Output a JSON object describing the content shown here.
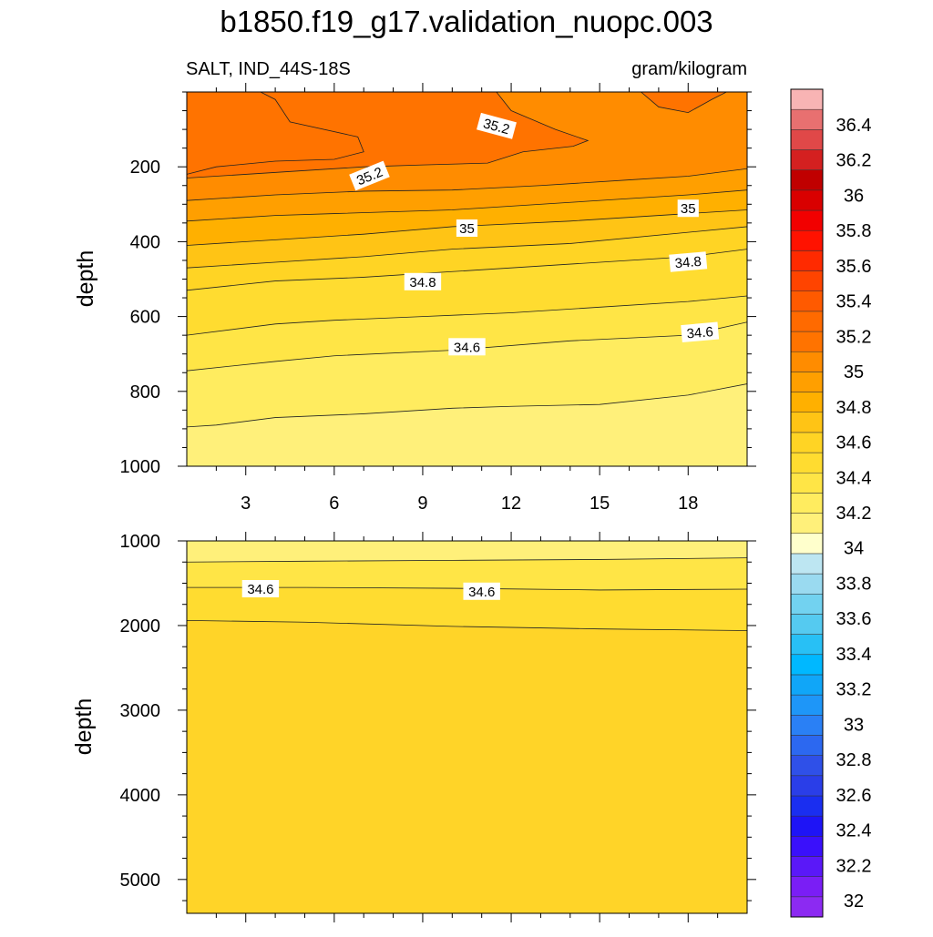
{
  "title": "b1850.f19_g17.validation_nuopc.003",
  "chart_data": {
    "type": "heatmap",
    "variable_label": "SALT, IND_44S-18S",
    "units_label": "gram/kilogram",
    "panels": [
      {
        "name": "upper",
        "ylabel": "depth",
        "xlim": [
          1,
          20
        ],
        "ylim": [
          1000,
          0
        ],
        "xticks": [
          "3",
          "6",
          "9",
          "12",
          "15",
          "18"
        ],
        "yticks": [
          "200",
          "400",
          "600",
          "800",
          "1000"
        ],
        "background_color": "#fff07a",
        "contours": [
          {
            "level": 35.2,
            "fill": "#ff7300",
            "points": [
              [
                1,
                220
              ],
              [
                2,
                200
              ],
              [
                4,
                185
              ],
              [
                6,
                180
              ],
              [
                7,
                160
              ],
              [
                6.8,
                120
              ],
              [
                4.5,
                80
              ],
              [
                4,
                20
              ],
              [
                3.5,
                0
              ]
            ]
          },
          {
            "level": 35.2,
            "fill": "#ff7300",
            "points": [
              [
                11.5,
                0
              ],
              [
                12,
                50
              ],
              [
                13.5,
                100
              ],
              [
                14.6,
                130
              ],
              [
                14.1,
                145
              ],
              [
                12.4,
                160
              ],
              [
                11.2,
                190
              ],
              [
                9,
                195
              ],
              [
                7,
                200
              ],
              [
                5,
                210
              ],
              [
                3,
                220
              ],
              [
                1,
                230
              ]
            ]
          },
          {
            "level": 35.2,
            "fill": "#ff7300",
            "points": [
              [
                16.4,
                0
              ],
              [
                17,
                40
              ],
              [
                18,
                55
              ],
              [
                18.8,
                20
              ],
              [
                19.3,
                0
              ]
            ]
          },
          {
            "level": 35.0,
            "fill": "#ff8c00",
            "points": [
              [
                1,
                290
              ],
              [
                4,
                275
              ],
              [
                7,
                265
              ],
              [
                10,
                262
              ],
              [
                13,
                250
              ],
              [
                16,
                235
              ],
              [
                18,
                225
              ],
              [
                20,
                205
              ]
            ]
          },
          {
            "level": 35.0,
            "fill": "#ff9f00",
            "points": [
              [
                1,
                345
              ],
              [
                4,
                330
              ],
              [
                6,
                325
              ],
              [
                10,
                315
              ],
              [
                14,
                295
              ],
              [
                18,
                275
              ],
              [
                20,
                262
              ]
            ]
          },
          {
            "level": 34.9,
            "fill": "#ffb000",
            "points": [
              [
                1,
                410
              ],
              [
                4,
                395
              ],
              [
                7,
                380
              ],
              [
                10,
                360
              ],
              [
                14,
                345
              ],
              [
                18,
                325
              ],
              [
                20,
                315
              ]
            ]
          },
          {
            "level": 34.8,
            "fill": "#ffc415",
            "points": [
              [
                1,
                470
              ],
              [
                4,
                455
              ],
              [
                7,
                440
              ],
              [
                10,
                420
              ],
              [
                14,
                405
              ],
              [
                18,
                375
              ],
              [
                20,
                360
              ]
            ]
          },
          {
            "level": 34.7,
            "fill": "#ffd424",
            "points": [
              [
                1,
                530
              ],
              [
                4,
                505
              ],
              [
                7,
                495
              ],
              [
                10,
                480
              ],
              [
                14,
                460
              ],
              [
                18,
                440
              ],
              [
                20,
                420
              ]
            ]
          },
          {
            "level": 34.6,
            "fill": "#ffdc30",
            "points": [
              [
                1,
                650
              ],
              [
                4,
                620
              ],
              [
                6,
                610
              ],
              [
                9,
                600
              ],
              [
                12,
                590
              ],
              [
                15,
                575
              ],
              [
                18,
                560
              ],
              [
                20,
                545
              ]
            ]
          },
          {
            "level": 34.5,
            "fill": "#ffe546",
            "points": [
              [
                1,
                745
              ],
              [
                4,
                720
              ],
              [
                6,
                705
              ],
              [
                10,
                690
              ],
              [
                14,
                665
              ],
              [
                18,
                650
              ],
              [
                20,
                615
              ]
            ]
          },
          {
            "level": 34.4,
            "fill": "#ffec5f",
            "points": [
              [
                1,
                895
              ],
              [
                2,
                890
              ],
              [
                4,
                870
              ],
              [
                7,
                860
              ],
              [
                10,
                845
              ],
              [
                12,
                840
              ],
              [
                15,
                835
              ],
              [
                18,
                810
              ],
              [
                20,
                780
              ]
            ]
          }
        ],
        "labels": [
          {
            "text": "35.2",
            "x": 11.5,
            "y": 92,
            "angle": 15
          },
          {
            "text": "35.2",
            "x": 7.2,
            "y": 225,
            "angle": -22
          },
          {
            "text": "35",
            "x": 18,
            "y": 312,
            "angle": 0
          },
          {
            "text": "35",
            "x": 10.5,
            "y": 365,
            "angle": 0
          },
          {
            "text": "34.8",
            "x": 18,
            "y": 455,
            "angle": -5
          },
          {
            "text": "34.8",
            "x": 9,
            "y": 508,
            "angle": 0
          },
          {
            "text": "34.6",
            "x": 18.4,
            "y": 643,
            "angle": -5
          },
          {
            "text": "34.6",
            "x": 10.5,
            "y": 682,
            "angle": 0
          }
        ]
      },
      {
        "name": "lower",
        "ylabel": "depth",
        "xlim": [
          1,
          20
        ],
        "ylim": [
          5400,
          1000
        ],
        "xticks": [],
        "yticks": [
          "1000",
          "2000",
          "3000",
          "4000",
          "5000"
        ],
        "background_color": "#ffd428",
        "contours": [
          {
            "level": 34.4,
            "fill": "#fff07a",
            "points": [
              [
                1,
                1250
              ],
              [
                5,
                1240
              ],
              [
                10,
                1230
              ],
              [
                15,
                1220
              ],
              [
                20,
                1200
              ]
            ]
          },
          {
            "level": 34.6,
            "fill": "#ffe546",
            "points": [
              [
                1,
                1550
              ],
              [
                5,
                1550
              ],
              [
                10,
                1560
              ],
              [
                15,
                1580
              ],
              [
                20,
                1570
              ]
            ]
          },
          {
            "level": 34.7,
            "fill": "#ffdc30",
            "points": [
              [
                1,
                1940
              ],
              [
                5,
                1960
              ],
              [
                10,
                2010
              ],
              [
                15,
                2040
              ],
              [
                20,
                2060
              ]
            ]
          }
        ],
        "labels": [
          {
            "text": "34.6",
            "x": 3.5,
            "y": 1570,
            "angle": 0
          },
          {
            "text": "34.6",
            "x": 11,
            "y": 1600,
            "angle": 0
          }
        ]
      }
    ],
    "colorbar": {
      "labels": [
        "32",
        "32.2",
        "32.4",
        "32.6",
        "32.8",
        "33",
        "33.2",
        "33.4",
        "33.6",
        "33.8",
        "34",
        "34.2",
        "34.4",
        "34.6",
        "34.8",
        "35",
        "35.2",
        "35.4",
        "35.6",
        "35.8",
        "36",
        "36.2",
        "36.4"
      ],
      "colors": [
        "#8c2af2",
        "#7a1ef5",
        "#5a18f8",
        "#3a10fb",
        "#1e14f6",
        "#1a2ef0",
        "#2a3ee8",
        "#2f50e8",
        "#2c68f0",
        "#2a80f5",
        "#1e96f8",
        "#10a6f8",
        "#00b8ff",
        "#28c0f5",
        "#55caf0",
        "#72d2f0",
        "#9adaf0",
        "#bde6f2",
        "#ffffcc",
        "#fff07a",
        "#ffec5f",
        "#ffe546",
        "#ffdc30",
        "#ffd424",
        "#ffc415",
        "#ffb000",
        "#ff9f00",
        "#ff8c00",
        "#ff7300",
        "#ff6a00",
        "#ff5a00",
        "#ff4400",
        "#ff2a00",
        "#ff1200",
        "#f20000",
        "#d90000",
        "#c00000",
        "#d42020",
        "#e04848",
        "#e87070",
        "#f8b4b4"
      ]
    }
  }
}
